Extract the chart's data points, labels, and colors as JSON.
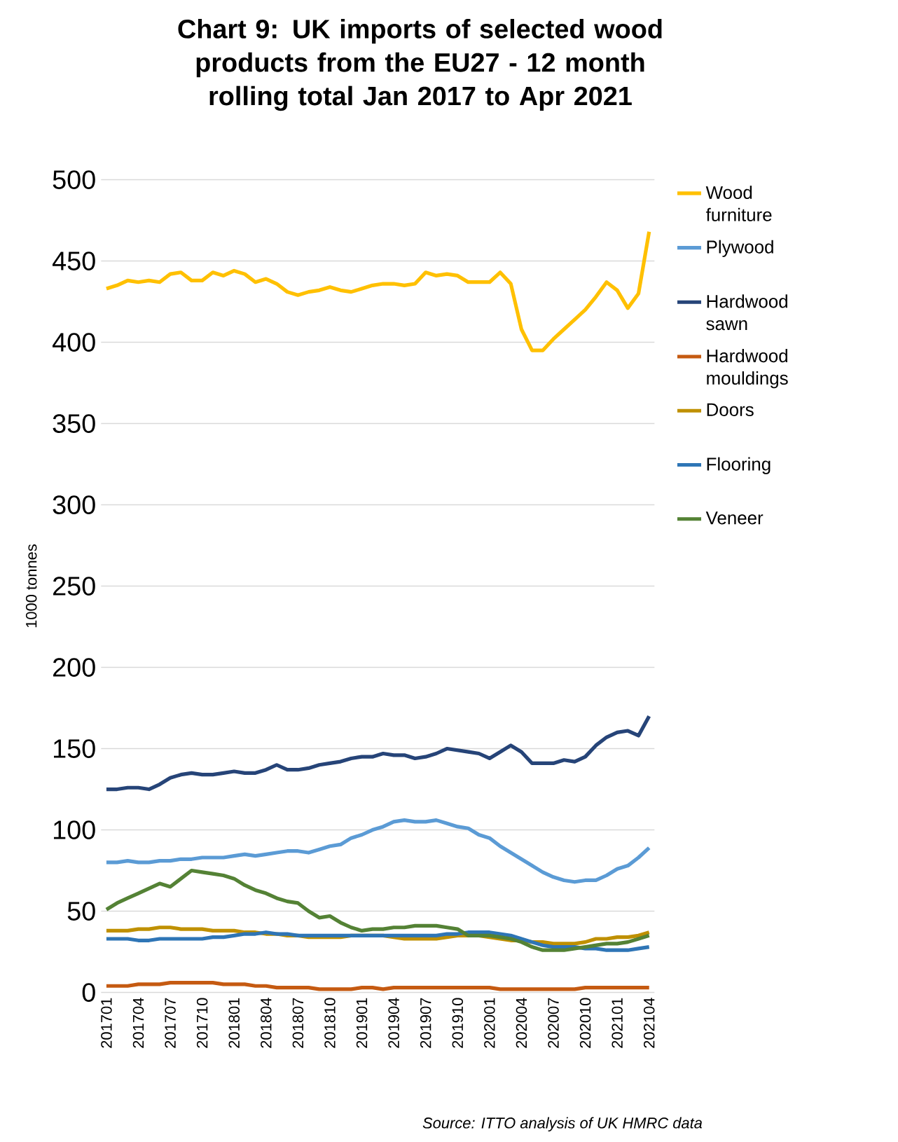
{
  "chart_data": {
    "type": "line",
    "title": "Chart 9: UK imports of selected wood products from the EU27 - 12 month rolling total Jan 2017 to Apr 2021",
    "ylabel": "1000 tonnes",
    "annotations": [
      "*Source: ITTO analysis of UK HMRC data*"
    ],
    "categories": [
      "201701",
      null,
      null,
      "201704",
      null,
      null,
      "201707",
      null,
      null,
      "201710",
      null,
      null,
      "201801",
      null,
      null,
      "201804",
      null,
      null,
      "201807",
      null,
      null,
      "201810",
      null,
      null,
      "201901",
      null,
      null,
      "201904",
      null,
      null,
      "201907",
      null,
      null,
      "201910",
      null,
      null,
      "202001",
      null,
      null,
      "202004",
      null,
      null,
      "202007",
      null,
      null,
      "202010",
      null,
      null,
      "202101",
      null,
      null,
      "202104"
    ],
    "ylim": [
      0,
      500
    ],
    "yticks": [
      0,
      50,
      100,
      150,
      200,
      250,
      300,
      350,
      400,
      450,
      500
    ],
    "grid": "y",
    "legend": "right",
    "marker": "none",
    "line_style": "solid",
    "series": [
      {
        "name": "Wood furniture",
        "color": "#ffc000",
        "values": [
          433,
          435,
          438,
          437,
          438,
          437,
          442,
          443,
          438,
          438,
          443,
          441,
          444,
          442,
          437,
          439,
          436,
          431,
          429,
          431,
          432,
          434,
          432,
          431,
          433,
          435,
          436,
          436,
          435,
          436,
          443,
          441,
          442,
          441,
          437,
          437,
          437,
          443,
          436,
          408,
          395,
          395,
          402,
          408,
          414,
          420,
          428,
          437,
          432,
          421,
          430,
          468
        ]
      },
      {
        "name": "Plywood",
        "color": "#5b9bd5",
        "values": [
          80,
          80,
          81,
          80,
          80,
          81,
          81,
          82,
          82,
          83,
          83,
          83,
          84,
          85,
          84,
          85,
          86,
          87,
          87,
          86,
          88,
          90,
          91,
          95,
          97,
          100,
          102,
          105,
          106,
          105,
          105,
          106,
          104,
          102,
          101,
          97,
          95,
          90,
          86,
          82,
          78,
          74,
          71,
          69,
          68,
          69,
          69,
          72,
          76,
          78,
          83,
          89
        ]
      },
      {
        "name": "Hardwood sawn",
        "color": "#264478",
        "values": [
          125,
          125,
          126,
          126,
          125,
          128,
          132,
          134,
          135,
          134,
          134,
          135,
          136,
          135,
          135,
          137,
          140,
          137,
          137,
          138,
          140,
          141,
          142,
          144,
          145,
          145,
          147,
          146,
          146,
          144,
          145,
          147,
          150,
          149,
          148,
          147,
          144,
          148,
          152,
          148,
          141,
          141,
          141,
          143,
          142,
          145,
          152,
          157,
          160,
          161,
          158,
          170
        ]
      },
      {
        "name": "Hardwood mouldings",
        "color": "#c55a11",
        "values": [
          4,
          4,
          4,
          5,
          5,
          5,
          6,
          6,
          6,
          6,
          6,
          5,
          5,
          5,
          4,
          4,
          3,
          3,
          3,
          3,
          2,
          2,
          2,
          2,
          3,
          3,
          2,
          3,
          3,
          3,
          3,
          3,
          3,
          3,
          3,
          3,
          3,
          2,
          2,
          2,
          2,
          2,
          2,
          2,
          2,
          3,
          3,
          3,
          3,
          3,
          3,
          3
        ]
      },
      {
        "name": "Doors",
        "color": "#bf9000",
        "values": [
          38,
          38,
          38,
          39,
          39,
          40,
          40,
          39,
          39,
          39,
          38,
          38,
          38,
          37,
          37,
          36,
          36,
          35,
          35,
          34,
          34,
          34,
          34,
          35,
          35,
          35,
          35,
          34,
          33,
          33,
          33,
          33,
          34,
          35,
          35,
          35,
          34,
          33,
          32,
          32,
          31,
          31,
          30,
          30,
          30,
          31,
          33,
          33,
          34,
          34,
          35,
          37
        ]
      },
      {
        "name": "Flooring",
        "color": "#2e75b6",
        "values": [
          33,
          33,
          33,
          32,
          32,
          33,
          33,
          33,
          33,
          33,
          34,
          34,
          35,
          36,
          36,
          37,
          36,
          36,
          35,
          35,
          35,
          35,
          35,
          35,
          35,
          35,
          35,
          35,
          35,
          35,
          35,
          35,
          36,
          36,
          37,
          37,
          37,
          36,
          35,
          33,
          31,
          29,
          28,
          28,
          28,
          27,
          27,
          26,
          26,
          26,
          27,
          28
        ]
      },
      {
        "name": "Veneer",
        "color": "#548235",
        "values": [
          51,
          55,
          58,
          61,
          64,
          67,
          65,
          70,
          75,
          74,
          73,
          72,
          70,
          66,
          63,
          61,
          58,
          56,
          55,
          50,
          46,
          47,
          43,
          40,
          38,
          39,
          39,
          40,
          40,
          41,
          41,
          41,
          40,
          39,
          35,
          35,
          35,
          34,
          33,
          31,
          28,
          26,
          26,
          26,
          27,
          28,
          29,
          30,
          30,
          31,
          33,
          35
        ]
      }
    ]
  }
}
